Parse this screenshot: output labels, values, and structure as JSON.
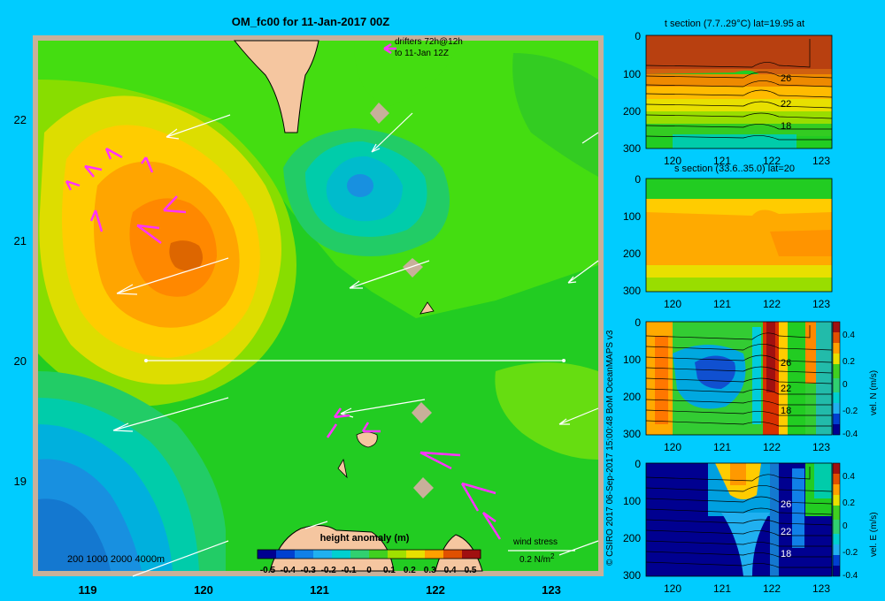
{
  "map": {
    "title": "OM_fc00 for 11-Jan-2017 00Z",
    "drifters_line1": "drifters 72h@12h",
    "drifters_line2": "to 11-Jan 12Z",
    "lat_ticks": [
      "22",
      "21",
      "20",
      "19"
    ],
    "lon_ticks": [
      "119",
      "120",
      "121",
      "122",
      "123"
    ],
    "depth_legend": "200  1000  2000  4000m",
    "colorbar_title": "height anomaly  (m)",
    "colorbar_ticks": [
      "-0.5",
      "-0.4",
      "-0.3",
      "-0.2",
      "-0.1",
      "0",
      "0.1",
      "0.2",
      "0.3",
      "0.4",
      "0.5"
    ],
    "colorbar_colors": [
      "#000090",
      "#0040d0",
      "#1080e8",
      "#20b0f0",
      "#00d0d0",
      "#30d070",
      "#40d020",
      "#a0e000",
      "#e8e000",
      "#ffa000",
      "#e05000",
      "#a01010"
    ],
    "wind_label": "wind stress",
    "wind_scale": "0.2 N/m",
    "wind_scale_sup": "2"
  },
  "side_panels": [
    {
      "title": "t section (7.7..29°C) lat=19.95 at",
      "contour_labels": [
        "26",
        "22",
        "18"
      ],
      "y_ticks": [
        "0",
        "100",
        "200",
        "300"
      ],
      "x_ticks": [
        "120",
        "121",
        "122",
        "123"
      ]
    },
    {
      "title": "s section (33.6..35.0) lat=20",
      "contour_labels": [],
      "y_ticks": [
        "0",
        "100",
        "200",
        "300"
      ],
      "x_ticks": [
        "120",
        "121",
        "122",
        "123"
      ]
    },
    {
      "title": "",
      "contour_labels": [
        "26",
        "22",
        "18"
      ],
      "y_ticks": [
        "0",
        "100",
        "200",
        "300"
      ],
      "x_ticks": [
        "120",
        "121",
        "122",
        "123"
      ],
      "cbar_label": "vel. N (m/s)",
      "cbar_ticks": [
        "0.4",
        "0.2",
        "0",
        "-0.2",
        "-0.4"
      ]
    },
    {
      "title": "",
      "contour_labels": [
        "26",
        "22",
        "18"
      ],
      "y_ticks": [
        "0",
        "100",
        "200",
        "300"
      ],
      "x_ticks": [
        "120",
        "121",
        "122",
        "123"
      ],
      "cbar_label": "vel. E (m/s)",
      "cbar_ticks": [
        "0.4",
        "0.2",
        "0",
        "-0.2",
        "-0.4"
      ]
    }
  ],
  "credit": "© CSIRO 2017    06-Sep-2017 15:00:48 BoM OceanMAPS v3",
  "colors": {
    "background": "#00ccff",
    "drifter": "#ff33ff",
    "land": "#f5c6a0",
    "frame": "#c8b09a"
  }
}
